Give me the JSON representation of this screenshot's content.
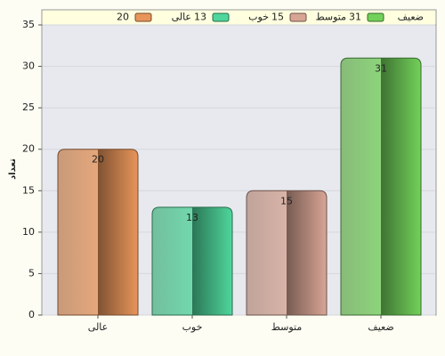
{
  "chart_data": {
    "type": "bar",
    "y_label": "تعداد",
    "categories": [
      "عالی",
      "خوب",
      "متوسط",
      "ضعیف"
    ],
    "values": [
      20,
      13,
      15,
      31
    ],
    "colors": [
      "#e8955a",
      "#4fd69c",
      "#d8a595",
      "#72d15a"
    ],
    "ylim": [
      0,
      35
    ],
    "yticks": [
      0,
      5,
      10,
      15,
      20,
      25,
      30,
      35
    ],
    "grid": true,
    "legend": "top"
  }
}
